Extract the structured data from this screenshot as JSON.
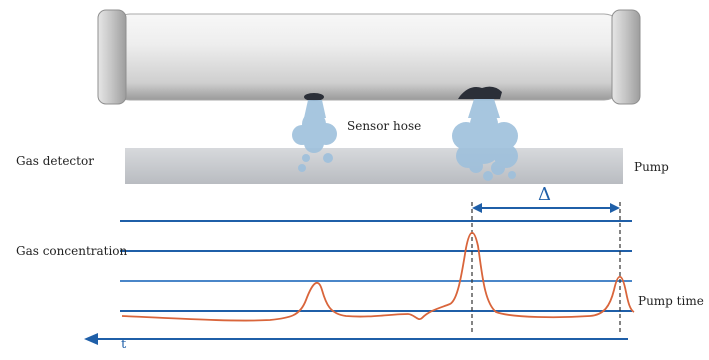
{
  "labels": {
    "sensor_hose": "Sensor hose",
    "gas_detector": "Gas detector",
    "pump": "Pump",
    "gas_concentration": "Gas concentration",
    "pump_time": "Pump time",
    "delta": "Δ",
    "axis_mark": "t"
  },
  "colors": {
    "pipe_light": "#f4f4f4",
    "pipe_mid": "#d9d9d9",
    "pipe_dark": "#8e8e8e",
    "flange": "#bdbdbd",
    "tube_band": "#c9ccd1",
    "gas_cloud": "#9ec0dc",
    "leak_spot": "#2b2f38",
    "grid_line": "#1f5fa8",
    "signal": "#d9653b",
    "marker": "#333333"
  },
  "icons": {
    "pipe": "pipeline-pipe",
    "leak_small": "small-leak-gas-cloud",
    "leak_large": "large-leak-gas-cloud",
    "time_axis": "left-arrow"
  }
}
